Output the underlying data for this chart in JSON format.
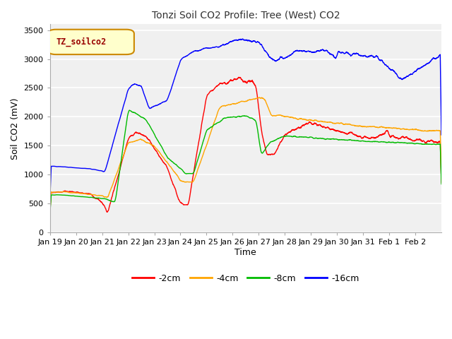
{
  "title": "Tonzi Soil CO2 Profile: Tree (West) CO2",
  "xlabel": "Time",
  "ylabel": "Soil CO2 (mV)",
  "ylim": [
    0,
    3600
  ],
  "yticks": [
    0,
    500,
    1000,
    1500,
    2000,
    2500,
    3000,
    3500
  ],
  "legend_label": "TZ_soilco2",
  "series_labels": [
    "-2cm",
    "-4cm",
    "-8cm",
    "-16cm"
  ],
  "series_colors": [
    "#ff0000",
    "#ffa500",
    "#00bb00",
    "#0000ff"
  ],
  "fig_facecolor": "#ffffff",
  "plot_bg_color": "#f0f0f0",
  "grid_color": "#e0e0e0",
  "xtick_labels": [
    "Jan 19",
    "Jan 20",
    "Jan 21",
    "Jan 22",
    "Jan 23",
    "Jan 24",
    "Jan 25",
    "Jan 26",
    "Jan 27",
    "Jan 28",
    "Jan 29",
    "Jan 30",
    "Jan 31",
    "Feb 1",
    "Feb 2"
  ],
  "title_color": "#333333",
  "label_box_facecolor": "#ffffcc",
  "label_box_edgecolor": "#cc8800",
  "label_text_color": "#990000"
}
